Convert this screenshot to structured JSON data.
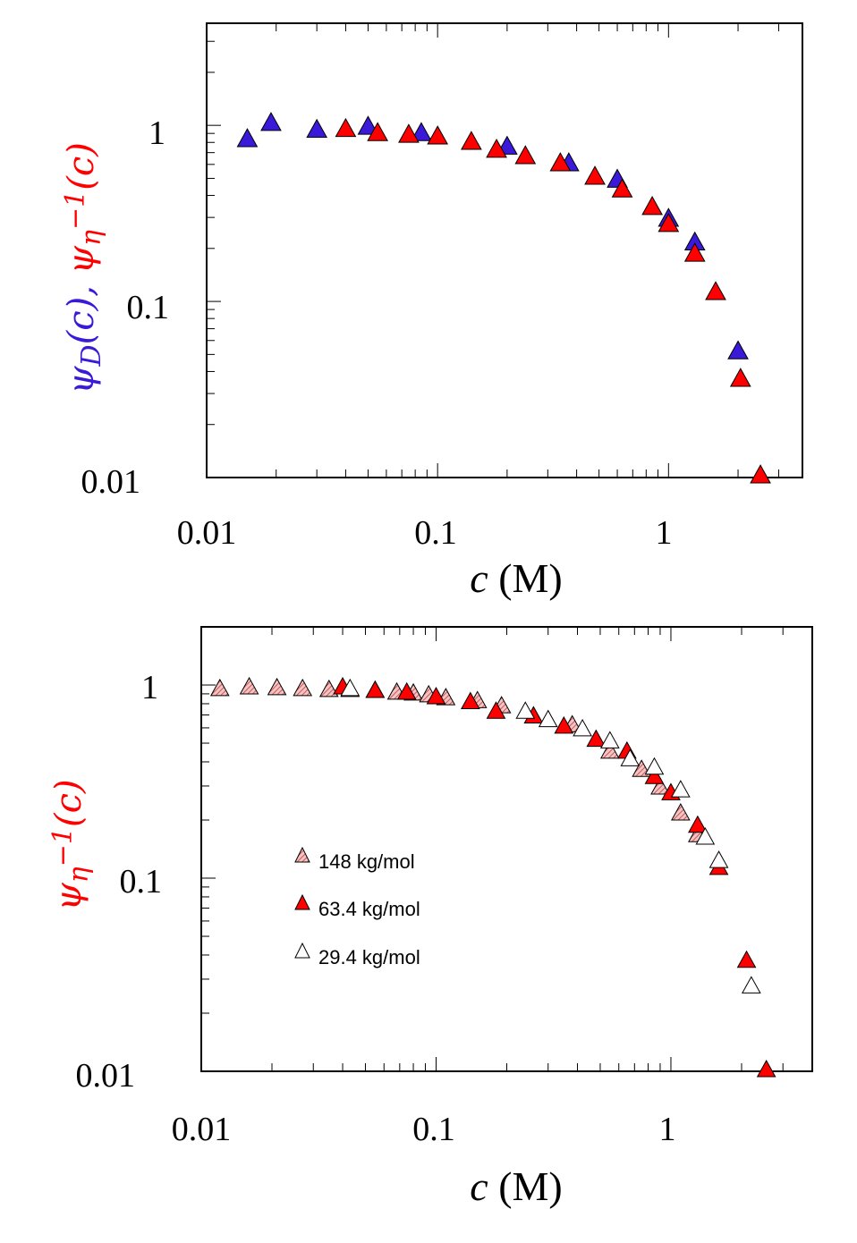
{
  "colors": {
    "blue": "#3a19d8",
    "red": "#ff0000",
    "hatched": "#e9a1a1",
    "open": "#ffffff"
  },
  "top_chart": {
    "xlabel_var": "c",
    "xlabel_unit": " (M)",
    "ylabel_blue": "ψ_D(c), ",
    "ylabel_red": "ψ_η^−1(c)",
    "x_ticks": [
      "0.01",
      "0.1",
      "1"
    ],
    "y_ticks": [
      "0.01",
      "0.1",
      "1"
    ]
  },
  "bottom_chart": {
    "xlabel_var": "c",
    "xlabel_unit": " (M)",
    "ylabel_red": "ψ_η^−1(c)",
    "x_ticks": [
      "0.01",
      "0.1",
      "1"
    ],
    "y_ticks": [
      "0.01",
      "0.1",
      "1"
    ],
    "legend": [
      {
        "label": "148  kg/mol",
        "style": "hatched"
      },
      {
        "label": "63.4 kg/mol",
        "style": "red"
      },
      {
        "label": "29.4 kg/mol",
        "style": "open"
      }
    ]
  },
  "chart_data": [
    {
      "type": "scatter",
      "xscale": "log",
      "yscale": "log",
      "xlim": [
        0.01,
        3.8
      ],
      "ylim": [
        0.01,
        3.8
      ],
      "xlabel": "c (M)",
      "ylabel": "ψ_D(c), ψ_η^−1(c)",
      "grid": false,
      "series": [
        {
          "style": "blue",
          "points": [
            [
              0.015,
              0.85
            ],
            [
              0.019,
              1.05
            ],
            [
              0.03,
              0.96
            ],
            [
              0.05,
              1.0
            ],
            [
              0.085,
              0.92
            ],
            [
              0.2,
              0.77
            ],
            [
              0.37,
              0.62
            ],
            [
              0.6,
              0.5
            ],
            [
              1.0,
              0.3
            ],
            [
              1.3,
              0.22
            ],
            [
              2.0,
              0.053
            ]
          ]
        },
        {
          "style": "red",
          "points": [
            [
              0.04,
              0.97
            ],
            [
              0.055,
              0.92
            ],
            [
              0.075,
              0.9
            ],
            [
              0.1,
              0.88
            ],
            [
              0.14,
              0.82
            ],
            [
              0.18,
              0.74
            ],
            [
              0.24,
              0.68
            ],
            [
              0.34,
              0.62
            ],
            [
              0.48,
              0.52
            ],
            [
              0.63,
              0.44
            ],
            [
              0.85,
              0.35
            ],
            [
              1.0,
              0.28
            ],
            [
              1.3,
              0.19
            ],
            [
              1.6,
              0.115
            ],
            [
              2.05,
              0.037
            ],
            [
              2.5,
              0.01
            ]
          ]
        }
      ]
    },
    {
      "type": "scatter",
      "xscale": "log",
      "yscale": "log",
      "xlim": [
        0.01,
        4.0
      ],
      "ylim": [
        0.01,
        2.0
      ],
      "xlabel": "c (M)",
      "ylabel": "ψ_η^−1(c)",
      "grid": false,
      "series": [
        {
          "name": "148  kg/mol",
          "style": "hatched",
          "points": [
            [
              0.012,
              0.97
            ],
            [
              0.016,
              0.99
            ],
            [
              0.021,
              0.98
            ],
            [
              0.027,
              0.97
            ],
            [
              0.035,
              0.96
            ],
            [
              0.043,
              0.96
            ],
            [
              0.055,
              0.95
            ],
            [
              0.068,
              0.93
            ],
            [
              0.08,
              0.92
            ],
            [
              0.093,
              0.9
            ],
            [
              0.11,
              0.87
            ],
            [
              0.15,
              0.84
            ],
            [
              0.19,
              0.79
            ],
            [
              0.26,
              0.7
            ],
            [
              0.38,
              0.63
            ],
            [
              0.55,
              0.46
            ],
            [
              0.75,
              0.37
            ],
            [
              0.9,
              0.3
            ],
            [
              1.1,
              0.22
            ],
            [
              1.3,
              0.17
            ]
          ]
        },
        {
          "name": "63.4 kg/mol",
          "style": "red",
          "points": [
            [
              0.04,
              0.99
            ],
            [
              0.055,
              0.95
            ],
            [
              0.075,
              0.93
            ],
            [
              0.1,
              0.88
            ],
            [
              0.14,
              0.83
            ],
            [
              0.18,
              0.74
            ],
            [
              0.26,
              0.7
            ],
            [
              0.35,
              0.62
            ],
            [
              0.48,
              0.53
            ],
            [
              0.65,
              0.46
            ],
            [
              0.85,
              0.34
            ],
            [
              1.0,
              0.28
            ],
            [
              1.3,
              0.19
            ],
            [
              1.6,
              0.115
            ],
            [
              2.1,
              0.038
            ],
            [
              2.55,
              0.01
            ]
          ]
        },
        {
          "name": "29.4 kg/mol",
          "style": "open",
          "points": [
            [
              0.043,
              0.97
            ],
            [
              0.24,
              0.74
            ],
            [
              0.3,
              0.67
            ],
            [
              0.42,
              0.6
            ],
            [
              0.55,
              0.52
            ],
            [
              0.67,
              0.42
            ],
            [
              0.85,
              0.38
            ],
            [
              1.1,
              0.29
            ],
            [
              1.4,
              0.165
            ],
            [
              1.6,
              0.125
            ],
            [
              2.2,
              0.028
            ]
          ]
        }
      ]
    }
  ]
}
